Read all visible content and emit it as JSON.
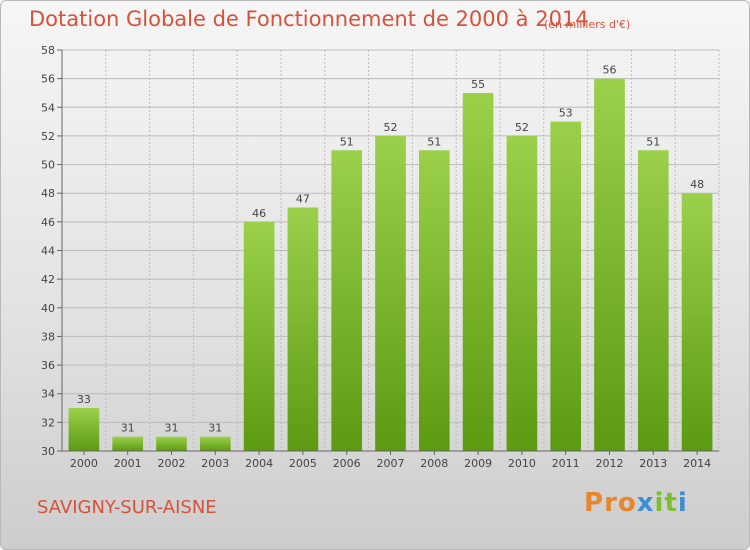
{
  "header": {
    "title": "Dotation Globale de Fonctionnement de 2000 à 2014",
    "unit": "(en milliers d'€)"
  },
  "footer": {
    "commune": "SAVIGNY-SUR-AISNE",
    "logo_letters": [
      "P",
      "r",
      "o",
      "x",
      "i",
      "t",
      "i"
    ],
    "logo_colors": [
      "#e8862b",
      "#e8862b",
      "#e8862b",
      "#3a8fd6",
      "#7bbf2e",
      "#7bbf2e",
      "#3a8fd6"
    ]
  },
  "chart_data": {
    "type": "bar",
    "title": "Dotation Globale de Fonctionnement de 2000 à 2014",
    "subtitle": "(en milliers d'€)",
    "categories": [
      "2000",
      "2001",
      "2002",
      "2003",
      "2004",
      "2005",
      "2006",
      "2007",
      "2008",
      "2009",
      "2010",
      "2011",
      "2012",
      "2013",
      "2014"
    ],
    "values": [
      33,
      31,
      31,
      31,
      46,
      47,
      51,
      52,
      51,
      55,
      52,
      53,
      56,
      51,
      48
    ],
    "ylim": [
      30,
      58
    ],
    "yticks": [
      30,
      32,
      34,
      36,
      38,
      40,
      42,
      44,
      46,
      48,
      50,
      52,
      54,
      56,
      58
    ],
    "grid": true,
    "bar_color_top": "#9bd04a",
    "bar_color_bottom": "#5c9a12",
    "grid_color": "#bbbbbb"
  }
}
